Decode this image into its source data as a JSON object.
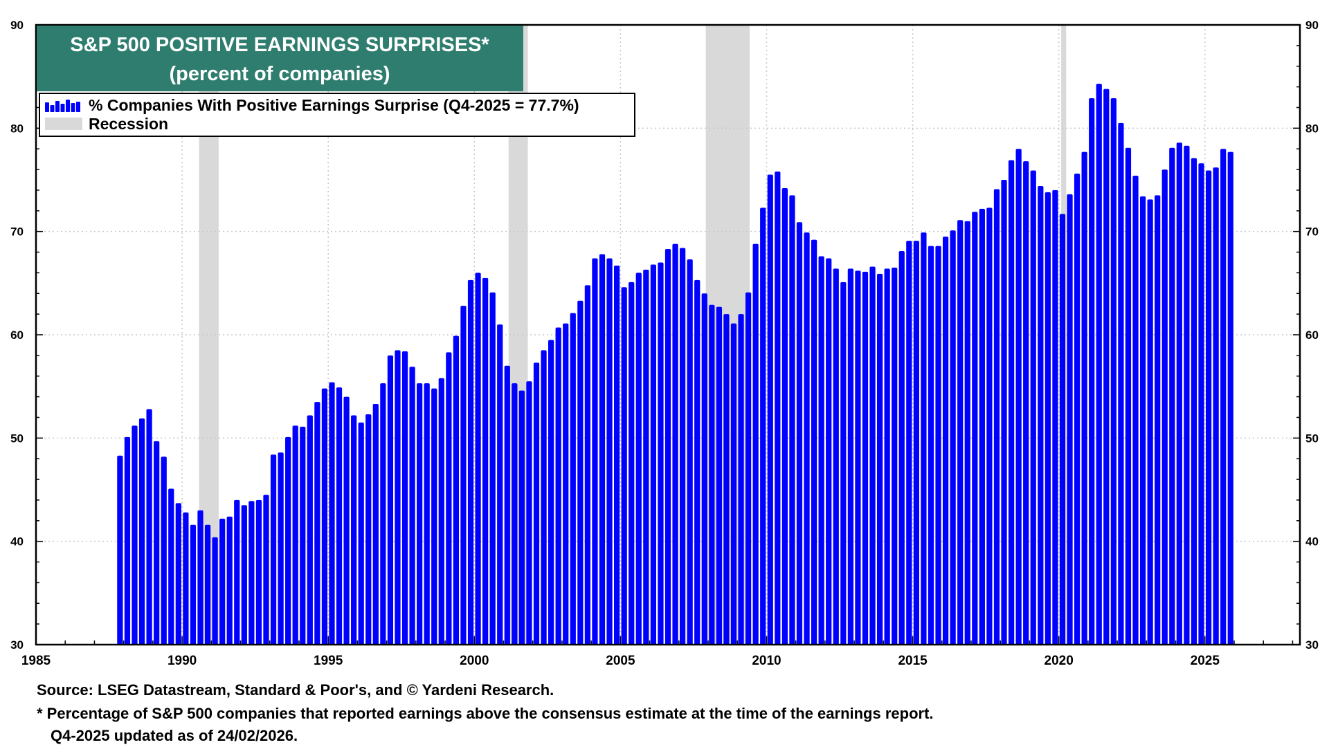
{
  "chart_data": {
    "type": "bar",
    "title": "S&P 500 POSITIVE EARNINGS SURPRISES*",
    "subtitle": "(percent of companies)",
    "ylim": [
      30,
      90
    ],
    "y_ticks": [
      "30",
      "40",
      "50",
      "60",
      "70",
      "80",
      "90"
    ],
    "xlim": [
      1985,
      2028.25
    ],
    "x_ticks": [
      "1985",
      "1990",
      "1995",
      "2000",
      "2005",
      "2010",
      "2015",
      "2020",
      "2025"
    ],
    "grid": true,
    "legend_position": "top-left",
    "series": [
      {
        "name": "% Companies With Positive Earnings Surprise (Q4-2025 = 77.7%)",
        "color": "#0000ff",
        "start_quarter": "Q4-1987",
        "values": [
          48.3,
          50.1,
          51.2,
          51.9,
          52.8,
          49.7,
          48.2,
          45.1,
          43.7,
          42.8,
          41.6,
          43.0,
          41.6,
          40.4,
          42.2,
          42.4,
          44.0,
          43.5,
          43.9,
          44.0,
          44.5,
          48.4,
          48.6,
          50.1,
          51.2,
          51.1,
          52.2,
          53.5,
          54.8,
          55.4,
          54.9,
          54.0,
          52.2,
          51.5,
          52.3,
          53.3,
          55.3,
          58.0,
          58.5,
          58.4,
          56.9,
          55.3,
          55.3,
          54.8,
          55.8,
          58.3,
          59.9,
          62.8,
          65.3,
          66.0,
          65.5,
          64.1,
          61.0,
          57.0,
          55.3,
          54.6,
          55.5,
          57.3,
          58.5,
          59.5,
          60.7,
          61.1,
          62.1,
          63.3,
          64.8,
          67.4,
          67.8,
          67.4,
          66.7,
          64.6,
          65.1,
          66.0,
          66.3,
          66.8,
          67.0,
          68.3,
          68.8,
          68.4,
          67.3,
          65.3,
          64.0,
          62.9,
          62.7,
          62.0,
          61.1,
          62.0,
          64.1,
          68.8,
          72.3,
          75.5,
          75.8,
          74.2,
          73.5,
          70.9,
          69.9,
          69.2,
          67.6,
          67.4,
          66.4,
          65.1,
          66.4,
          66.2,
          66.1,
          66.6,
          65.9,
          66.4,
          66.5,
          68.1,
          69.1,
          69.1,
          69.9,
          68.6,
          68.6,
          69.5,
          70.1,
          71.1,
          71.0,
          71.9,
          72.2,
          72.3,
          74.1,
          75.0,
          76.9,
          78.0,
          76.8,
          75.9,
          74.4,
          73.8,
          74.0,
          71.7,
          73.6,
          75.6,
          77.7,
          82.9,
          84.3,
          83.8,
          82.9,
          80.5,
          78.1,
          75.4,
          73.4,
          73.1,
          73.5,
          76.0,
          78.1,
          78.6,
          78.3,
          77.1,
          76.6,
          75.9,
          76.2,
          78.0,
          77.7
        ]
      }
    ],
    "recessions": [
      {
        "start": 1990.58,
        "end": 1991.25
      },
      {
        "start": 2001.17,
        "end": 2001.83
      },
      {
        "start": 2007.92,
        "end": 2009.42
      },
      {
        "start": 2020.08,
        "end": 2020.25
      }
    ],
    "legend": [
      {
        "label": "% Companies With Positive Earnings Surprise (Q4-2025 = 77.7%)",
        "color": "#0000ff"
      },
      {
        "label": "Recession",
        "color": "#d9d9d9"
      }
    ]
  },
  "colors": {
    "bar": "#0000ff",
    "recession": "#d9d9d9",
    "title_bg": "#2e7d6e",
    "grid": "#c8c8c8"
  },
  "footer": {
    "source": "Source: LSEG Datastream, Standard & Poor's, and © Yardeni Research.",
    "note": "* Percentage of S&P 500 companies that reported earnings above the consensus estimate at the time of the earnings report.",
    "updated": "Q4-2025 updated as of 24/02/2026."
  }
}
